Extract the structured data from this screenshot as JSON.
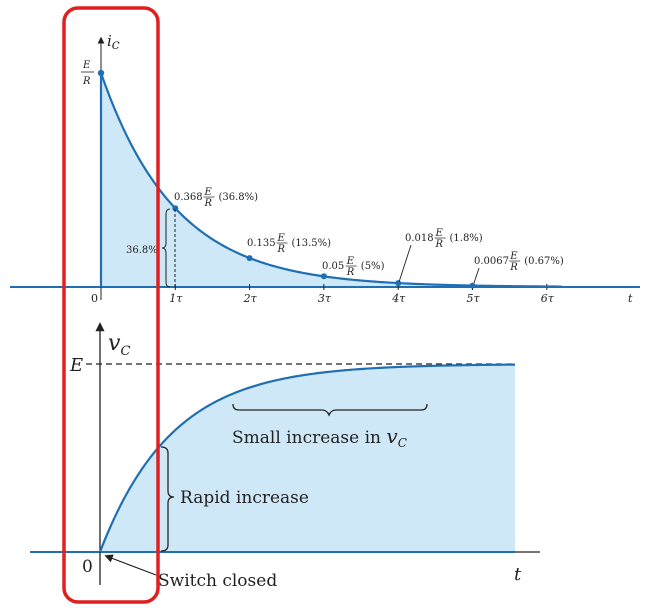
{
  "chart_data": [
    {
      "type": "area",
      "y_axis_label": {
        "var": "i",
        "sub": "C"
      },
      "x_axis_label": "t",
      "origin_label": "0",
      "x_ticks": [
        "1τ",
        "2τ",
        "3τ",
        "4τ",
        "5τ",
        "6τ"
      ],
      "x_range_tau": [
        0,
        6.2
      ],
      "y_start": {
        "num": "E",
        "den": "R"
      },
      "curve": "decay",
      "points": [
        {
          "x": 1,
          "coef": "0.368",
          "pct": "(36.8%)",
          "y": 0.368
        },
        {
          "x": 2,
          "coef": "0.135",
          "pct": "(13.5%)",
          "y": 0.135
        },
        {
          "x": 3,
          "coef": "0.05",
          "pct": "(5%)",
          "y": 0.05
        },
        {
          "x": 4,
          "coef": "0.018",
          "pct": "(1.8%)",
          "y": 0.018
        },
        {
          "x": 5,
          "coef": "0.0067",
          "pct": "(0.67%)",
          "y": 0.0067
        }
      ],
      "bracket_label": "36.8%",
      "fill_color": "#cfe8f8",
      "line_color": "#1f6fb2"
    },
    {
      "type": "area",
      "y_axis_label": {
        "var": "v",
        "sub": "C"
      },
      "x_axis_label": "t",
      "origin_label": "0",
      "y_level_label": "E",
      "curve": "rise",
      "annotations": {
        "small_increase": {
          "text": "Small increase in ",
          "var": "v",
          "sub": "C"
        },
        "rapid_increase": "Rapid increase",
        "switch_closed": "Switch closed"
      },
      "fill_color": "#cfe8f8",
      "line_color": "#1f6fb2"
    }
  ],
  "highlight": {
    "color": "#e02020"
  }
}
